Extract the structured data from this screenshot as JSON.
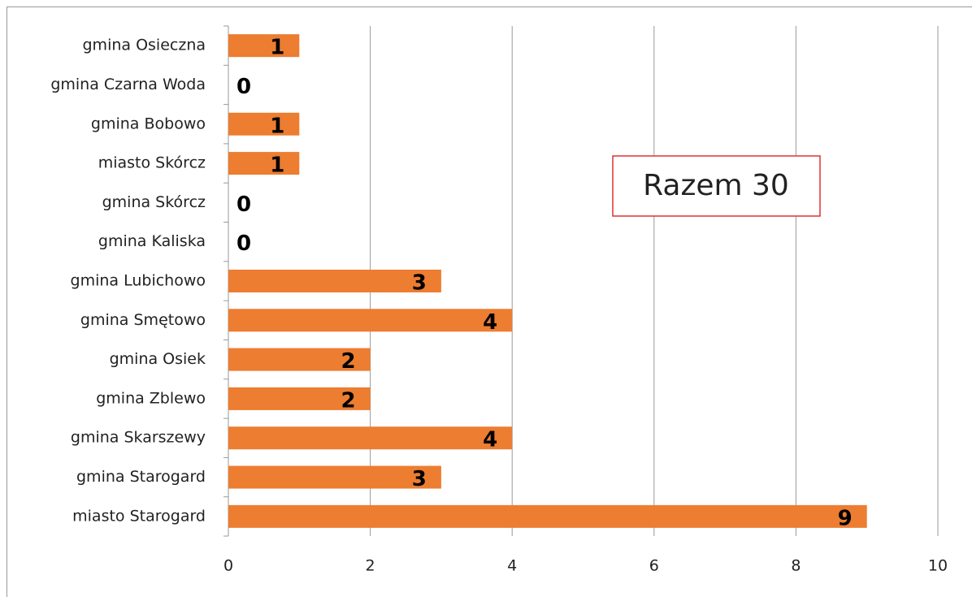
{
  "chart_data": {
    "type": "barh",
    "categories": [
      "gmina Osieczna",
      "gmina Czarna Woda",
      "gmina Bobowo",
      "miasto Skórcz",
      "gmina Skórcz",
      "gmina Kaliska",
      "gmina Lubichowo",
      "gmina Smętowo",
      "gmina Osiek",
      "gmina Zblewo",
      "gmina Skarszewy",
      "gmina Starogard",
      "miasto Starogard"
    ],
    "values": [
      1,
      0,
      1,
      1,
      0,
      0,
      3,
      4,
      2,
      2,
      4,
      3,
      9
    ],
    "color": "#ed7d31",
    "xlim": [
      0,
      10
    ],
    "xticks": [
      0,
      2,
      4,
      6,
      8,
      10
    ],
    "grid": true,
    "annotation": "Razem 30"
  }
}
